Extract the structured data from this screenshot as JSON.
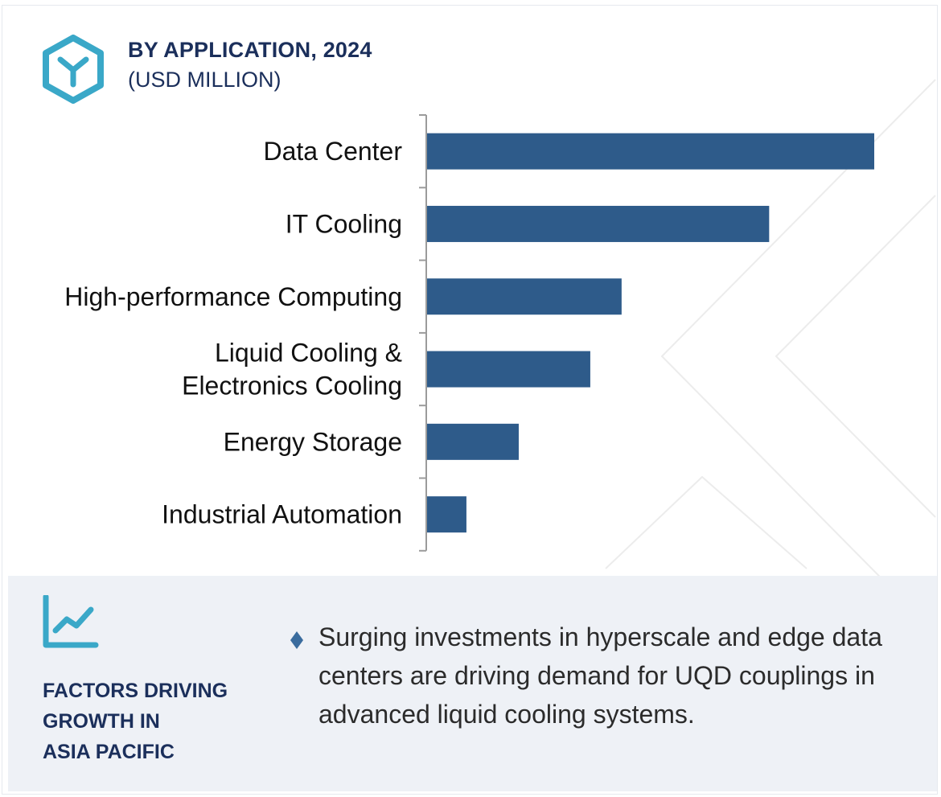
{
  "header": {
    "title": "BY APPLICATION, 2024",
    "subtitle": "(USD MILLION)",
    "icon": "hexagon-y-icon"
  },
  "colors": {
    "bar": "#2e5b8a",
    "title": "#1b2f5b",
    "accent": "#3aa8c8",
    "footer_bg": "#eef1f6"
  },
  "chart_data": {
    "type": "bar",
    "orientation": "horizontal",
    "title": "BY APPLICATION, 2024",
    "subtitle": "(USD MILLION)",
    "categories": [
      [
        "Data Center"
      ],
      [
        "IT Cooling"
      ],
      [
        "High-performance Computing"
      ],
      [
        "Liquid Cooling &",
        "Electronics Cooling"
      ],
      [
        "Energy Storage"
      ],
      [
        "Industrial Automation"
      ]
    ],
    "values": [
      100,
      76.5,
      43.5,
      36.5,
      20.5,
      8.8
    ],
    "xlim": [
      0,
      100
    ],
    "value_labels": false,
    "grid": false,
    "legend": "none"
  },
  "footer": {
    "icon": "line-chart-icon",
    "heading_lines": [
      "FACTORS DRIVING",
      "GROWTH IN",
      "ASIA PACIFIC"
    ],
    "bullet_icon": "diamond-bullet-icon",
    "bullet_text": "Surging investments in hyperscale and edge data centers are driving demand for UQD couplings in advanced liquid cooling systems."
  }
}
